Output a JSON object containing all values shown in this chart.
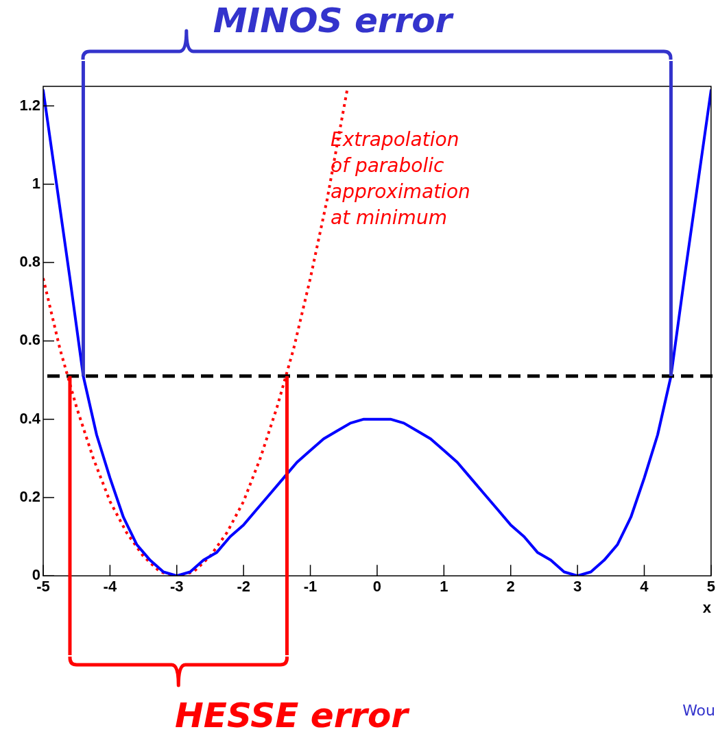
{
  "chart_data": {
    "type": "line",
    "xlabel": "x",
    "xlim": [
      -5,
      5
    ],
    "xticks": [
      -5,
      -4,
      -3,
      -2,
      -1,
      0,
      1,
      2,
      3,
      4,
      5
    ],
    "ylim": [
      0,
      1.25
    ],
    "yticks": [
      0,
      0.2,
      0.4,
      0.6,
      0.8,
      1,
      1.2
    ],
    "grid": false,
    "legend": false,
    "series": [
      {
        "color": "#0000ff",
        "line_style": "solid",
        "x": [
          -5,
          -4.8,
          -4.6,
          -4.4,
          -4.2,
          -4,
          -3.8,
          -3.6,
          -3.4,
          -3.2,
          -3,
          -2.8,
          -2.6,
          -2.4,
          -2.2,
          -2,
          -1.8,
          -1.6,
          -1.4,
          -1.2,
          -1,
          -0.8,
          -0.6,
          -0.4,
          -0.2,
          0,
          0.2,
          0.4,
          0.6,
          0.8,
          1,
          1.2,
          1.4,
          1.6,
          1.8,
          2,
          2.2,
          2.4,
          2.6,
          2.8,
          3,
          3.2,
          3.4,
          3.6,
          3.8,
          4,
          4.2,
          4.4,
          4.6,
          4.8,
          5
        ],
        "values": [
          1.24,
          1.0,
          0.76,
          0.51,
          0.36,
          0.25,
          0.15,
          0.08,
          0.04,
          0.01,
          0,
          0.01,
          0.04,
          0.06,
          0.1,
          0.13,
          0.17,
          0.21,
          0.25,
          0.29,
          0.32,
          0.35,
          0.37,
          0.39,
          0.4,
          0.4,
          0.4,
          0.39,
          0.37,
          0.35,
          0.32,
          0.29,
          0.25,
          0.21,
          0.17,
          0.13,
          0.1,
          0.06,
          0.04,
          0.01,
          0,
          0.01,
          0.04,
          0.08,
          0.15,
          0.25,
          0.36,
          0.51,
          0.76,
          1.0,
          1.24
        ]
      },
      {
        "color": "#ff0000",
        "line_style": "dotted",
        "x": [
          -5,
          -4.75,
          -4.5,
          -4.25,
          -4,
          -3.75,
          -3.5,
          -3.25,
          -3,
          -2.75,
          -2.5,
          -2.25,
          -2,
          -1.75,
          -1.5,
          -1.25,
          -1,
          -0.75,
          -0.45
        ],
        "values": [
          0.76,
          0.58,
          0.43,
          0.3,
          0.19,
          0.11,
          0.05,
          0.01,
          0,
          0.01,
          0.05,
          0.11,
          0.19,
          0.3,
          0.43,
          0.58,
          0.76,
          0.96,
          1.24
        ]
      }
    ],
    "ref_lines": [
      {
        "axis": "y",
        "value": 0.51,
        "color": "#000000",
        "line_style": "dashed"
      },
      {
        "axis": "x",
        "value": -4.4,
        "color": "#3333cc",
        "line_style": "solid"
      },
      {
        "axis": "x",
        "value": 4.4,
        "color": "#3333cc",
        "line_style": "solid"
      },
      {
        "axis": "x",
        "value": -4.6,
        "color": "#ff0000",
        "line_style": "solid"
      },
      {
        "axis": "x",
        "value": -1.35,
        "color": "#ff0000",
        "line_style": "solid"
      }
    ],
    "annotations": [
      "Extrapolation\nof parabolic\napproximation\nat minimum",
      "MINOS error",
      "HESSE error",
      "Wou"
    ]
  }
}
